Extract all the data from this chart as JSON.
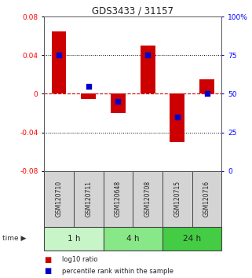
{
  "title": "GDS3433 / 31157",
  "samples": [
    "GSM120710",
    "GSM120711",
    "GSM120648",
    "GSM120708",
    "GSM120715",
    "GSM120716"
  ],
  "log10_ratio": [
    0.065,
    -0.005,
    -0.02,
    0.05,
    -0.05,
    0.015
  ],
  "percentile_rank": [
    75,
    55,
    45,
    75,
    35,
    50
  ],
  "ylim_left": [
    -0.08,
    0.08
  ],
  "ylim_right": [
    0,
    100
  ],
  "yticks_left": [
    -0.08,
    -0.04,
    0,
    0.04,
    0.08
  ],
  "yticks_right": [
    0,
    25,
    50,
    75,
    100
  ],
  "ytick_labels_left": [
    "-0.08",
    "-0.04",
    "0",
    "0.04",
    "0.08"
  ],
  "ytick_labels_right": [
    "0",
    "25",
    "50",
    "75",
    "100%"
  ],
  "groups": [
    {
      "label": "1 h",
      "indices": [
        0,
        1
      ],
      "color": "#c8f5c8"
    },
    {
      "label": "4 h",
      "indices": [
        2,
        3
      ],
      "color": "#88e888"
    },
    {
      "label": "24 h",
      "indices": [
        4,
        5
      ],
      "color": "#44cc44"
    }
  ],
  "bar_color": "#cc0000",
  "dot_color": "#0000cc",
  "bar_width": 0.5,
  "dot_size": 25,
  "grid_color": "#000000",
  "zero_line_color": "#cc0000",
  "sample_box_color": "#d4d4d4",
  "sample_box_border": "#444444",
  "legend_bar_label": "log10 ratio",
  "legend_dot_label": "percentile rank within the sample",
  "time_label": "time",
  "bg_color": "#ffffff"
}
